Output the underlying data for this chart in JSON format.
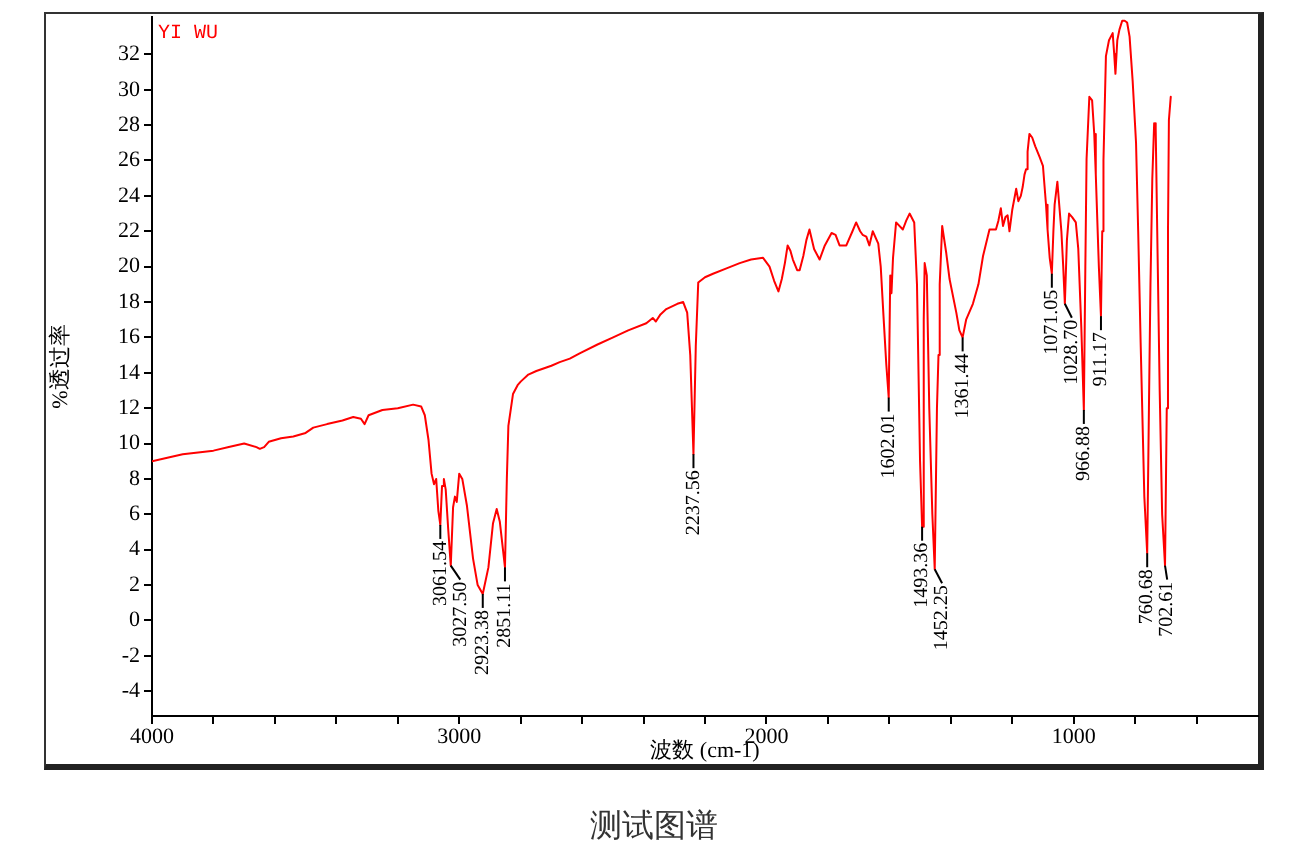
{
  "chart_data": {
    "type": "line",
    "title": "测试图谱",
    "xlabel": "波数 (cm-1)",
    "ylabel": "%透过率",
    "x": [
      4000,
      3950,
      3900,
      3850,
      3800,
      3750,
      3700,
      3660,
      3649,
      3635,
      3620,
      3580,
      3540,
      3500,
      3475,
      3430,
      3380,
      3345,
      3320,
      3308,
      3295,
      3250,
      3200,
      3150,
      3124,
      3112,
      3100,
      3090,
      3082,
      3075,
      3068,
      3061.54,
      3056,
      3050,
      3044,
      3036,
      3027.5,
      3020,
      3014,
      3008,
      3000,
      2990,
      2975,
      2955,
      2940,
      2923.38,
      2905,
      2890,
      2878,
      2868,
      2851.11,
      2845,
      2840,
      2825,
      2810,
      2800,
      2775,
      2749,
      2700,
      2673,
      2640,
      2608,
      2550,
      2499,
      2450,
      2391,
      2370,
      2360,
      2345,
      2326,
      2290,
      2271,
      2258,
      2248,
      2237.56,
      2230,
      2222,
      2200,
      2174,
      2130,
      2087,
      2050,
      2011,
      1990,
      1975,
      1961,
      1950,
      1940,
      1931,
      1922,
      1914,
      1900,
      1892,
      1880,
      1870,
      1860,
      1845,
      1827,
      1810,
      1788,
      1775,
      1762,
      1740,
      1720,
      1708,
      1695,
      1687,
      1675,
      1665,
      1654,
      1636,
      1628,
      1619,
      1610,
      1602.01,
      1597,
      1593,
      1588,
      1578,
      1556,
      1545,
      1534,
      1519,
      1510,
      1500,
      1493.36,
      1488,
      1485,
      1478,
      1470,
      1460,
      1452.25,
      1445,
      1440,
      1436,
      1428,
      1415,
      1404,
      1382,
      1372,
      1361.44,
      1350,
      1328,
      1310,
      1295,
      1274,
      1253,
      1245,
      1237,
      1230,
      1222,
      1215,
      1209,
      1200,
      1187,
      1180,
      1172,
      1166,
      1160,
      1155,
      1150,
      1144,
      1135,
      1125,
      1111,
      1100,
      1090,
      1085,
      1078,
      1071.05,
      1066,
      1062,
      1053,
      1047,
      1040,
      1034,
      1028.7,
      1022,
      1015,
      1005,
      993,
      985,
      975,
      966.88,
      962,
      958,
      949,
      940,
      933,
      928,
      918,
      911.17,
      907,
      903,
      895,
      885,
      873,
      868,
      864,
      858,
      851,
      842,
      834,
      826,
      818,
      808,
      797,
      790,
      782,
      770,
      760.68,
      755,
      750,
      744,
      738,
      733,
      728,
      720,
      712,
      702.61,
      697,
      693,
      690,
      684
    ],
    "values": [
      9.0,
      9.2,
      9.4,
      9.5,
      9.6,
      9.8,
      10.0,
      9.8,
      9.7,
      9.8,
      10.1,
      10.3,
      10.4,
      10.6,
      10.9,
      11.1,
      11.3,
      11.5,
      11.4,
      11.1,
      11.6,
      11.9,
      12.0,
      12.2,
      12.1,
      11.6,
      10.2,
      8.3,
      7.7,
      8.0,
      6.2,
      5.4,
      7.6,
      8.0,
      7.4,
      5.2,
      3.1,
      6.4,
      7.0,
      6.7,
      8.3,
      8.0,
      6.5,
      3.5,
      2.0,
      1.5,
      3.0,
      5.5,
      6.3,
      5.6,
      3.0,
      8.0,
      11.0,
      12.8,
      13.3,
      13.5,
      13.9,
      14.1,
      14.4,
      14.6,
      14.8,
      15.1,
      15.6,
      16.0,
      16.4,
      16.8,
      17.1,
      16.9,
      17.3,
      17.6,
      17.9,
      18.0,
      17.4,
      15.0,
      9.4,
      15.5,
      19.1,
      19.4,
      19.6,
      19.9,
      20.2,
      20.4,
      20.5,
      20.0,
      19.2,
      18.6,
      19.3,
      20.2,
      21.2,
      20.9,
      20.4,
      19.8,
      19.8,
      20.6,
      21.5,
      22.1,
      21.0,
      20.4,
      21.2,
      21.9,
      21.8,
      21.2,
      21.2,
      22.0,
      22.5,
      22.0,
      21.8,
      21.7,
      21.2,
      22.0,
      21.3,
      20.0,
      17.2,
      14.5,
      12.6,
      19.5,
      18.5,
      20.5,
      22.5,
      22.1,
      22.6,
      23.0,
      22.5,
      19.0,
      9.0,
      5.3,
      17.0,
      20.2,
      19.5,
      12.0,
      6.0,
      2.9,
      12.0,
      15.0,
      19.0,
      22.3,
      20.8,
      19.3,
      17.4,
      16.4,
      16.0,
      17.0,
      17.9,
      19.0,
      20.6,
      22.1,
      22.1,
      22.6,
      23.3,
      22.3,
      22.8,
      22.9,
      22.0,
      23.2,
      24.4,
      23.7,
      24.0,
      24.5,
      25.2,
      25.5,
      26.5,
      27.5,
      27.3,
      26.8,
      26.2,
      25.7,
      23.5,
      22.1,
      20.5,
      19.6,
      22.0,
      23.5,
      24.8,
      23.5,
      22.0,
      20.0,
      17.9,
      21.5,
      23.0,
      22.8,
      22.5,
      21.0,
      16.5,
      11.9,
      20.0,
      26.1,
      29.6,
      29.4,
      27.5,
      25.2,
      20.0,
      17.2,
      22.0,
      26.0,
      31.9,
      32.8,
      33.2,
      32.0,
      30.9,
      32.8,
      33.4,
      33.9,
      33.9,
      33.8,
      33.0,
      30.5,
      27.0,
      22.0,
      15.7,
      7.0,
      3.8,
      12.0,
      19.0,
      25.0,
      28.1,
      27.8,
      22.0,
      13.0,
      6.0,
      3.1,
      12.0,
      22.0,
      28.3,
      29.6
    ],
    "color": "#ff0000",
    "marker": "none",
    "line_style": "solid",
    "grid": false,
    "legend": false,
    "xlim": [
      4000,
      400
    ],
    "xticks": [
      4000,
      {
        "value": 3800,
        "label": null
      },
      {
        "value": 3600,
        "label": null
      },
      {
        "value": 3400,
        "label": null
      },
      {
        "value": 3200,
        "label": null
      },
      3000,
      {
        "value": 2800,
        "label": null
      },
      {
        "value": 2600,
        "label": null
      },
      {
        "value": 2400,
        "label": null
      },
      {
        "value": 2200,
        "label": null
      },
      2000,
      {
        "value": 1800,
        "label": null
      },
      {
        "value": 1600,
        "label": null
      },
      {
        "value": 1400,
        "label": null
      },
      {
        "value": 1200,
        "label": null
      },
      1000,
      {
        "value": 800,
        "label": null
      },
      {
        "value": 600,
        "label": null
      }
    ],
    "ylim": [
      -5.4,
      34.1
    ],
    "yticks": [
      -4,
      -2,
      0,
      2,
      4,
      6,
      8,
      10,
      12,
      14,
      16,
      18,
      20,
      22,
      24,
      26,
      28,
      30,
      32
    ],
    "annotations": [
      "YI WU",
      {
        "text": "3061.54",
        "x": 3061.54,
        "y": 5.4
      },
      {
        "text": "3027.50",
        "x": 3027.5,
        "y": 3.1
      },
      {
        "text": "2923.38",
        "x": 2923.38,
        "y": 1.5
      },
      {
        "text": "2851.11",
        "x": 2851.11,
        "y": 3.0
      },
      {
        "text": "2237.56",
        "x": 2237.56,
        "y": 9.4
      },
      {
        "text": "1602.01",
        "x": 1602.01,
        "y": 12.6
      },
      {
        "text": "1493.36",
        "x": 1493.36,
        "y": 5.3
      },
      {
        "text": "1452.25",
        "x": 1452.25,
        "y": 2.9
      },
      {
        "text": "1361.44",
        "x": 1361.44,
        "y": 16.0
      },
      {
        "text": "1071.05",
        "x": 1071.05,
        "y": 19.6
      },
      {
        "text": "1028.70",
        "x": 1028.7,
        "y": 17.9
      },
      {
        "text": "966.88",
        "x": 966.88,
        "y": 11.9
      },
      {
        "text": "911.17",
        "x": 911.17,
        "y": 17.2
      },
      {
        "text": "760.68",
        "x": 760.68,
        "y": 3.8
      },
      {
        "text": "702.61",
        "x": 702.61,
        "y": 3.1
      }
    ]
  }
}
